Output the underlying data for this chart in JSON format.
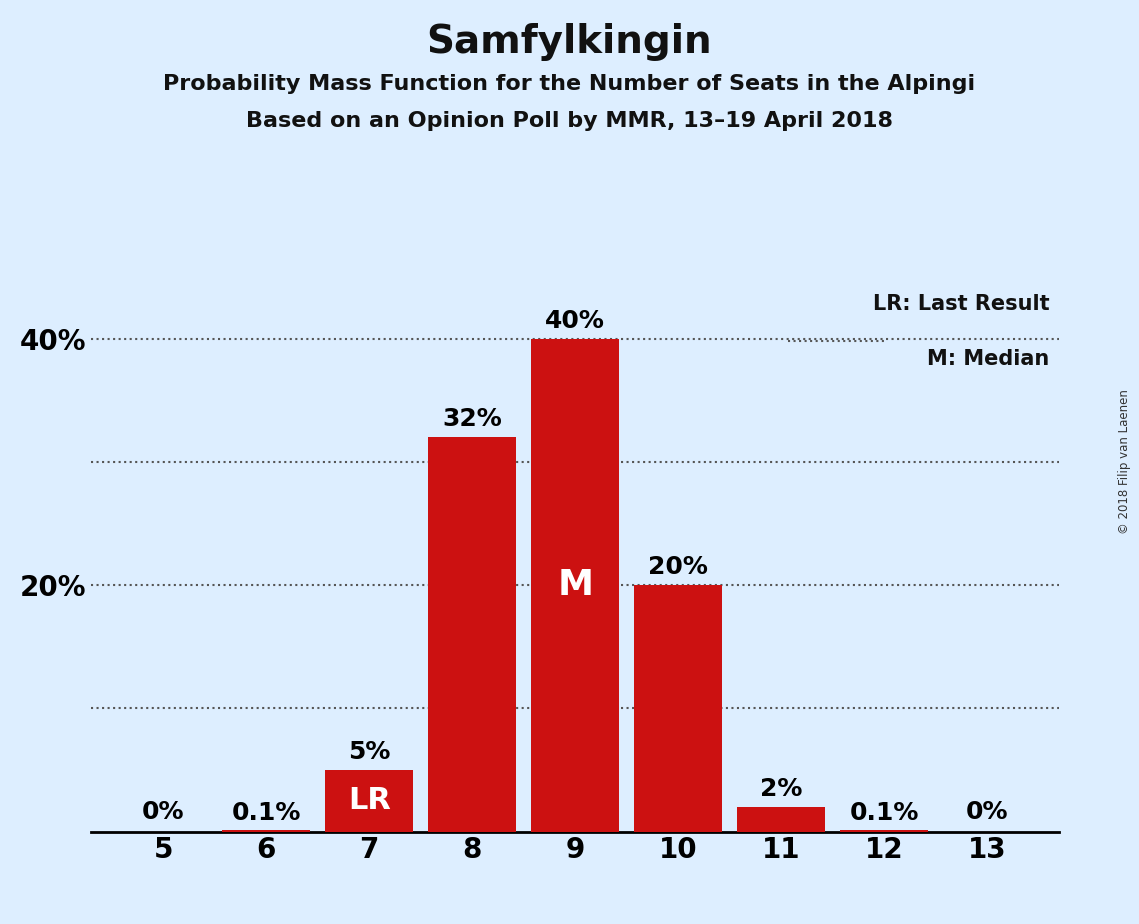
{
  "title": "Samfylkingin",
  "subtitle1": "Probability Mass Function for the Number of Seats in the Alpingi",
  "subtitle2": "Based on an Opinion Poll by MMR, 13–19 April 2018",
  "copyright": "© 2018 Filip van Laenen",
  "background_color": "#ddeeff",
  "bar_color": "#cc1111",
  "seats": [
    5,
    6,
    7,
    8,
    9,
    10,
    11,
    12,
    13
  ],
  "probabilities": [
    0.0,
    0.1,
    5.0,
    32.0,
    40.0,
    20.0,
    2.0,
    0.1,
    0.0
  ],
  "labels": [
    "0%",
    "0.1%",
    "5%",
    "32%",
    "40%",
    "20%",
    "2%",
    "0.1%",
    "0%"
  ],
  "median_seat": 9,
  "lr_seat": 7,
  "ylim": [
    0,
    45
  ],
  "yticks": [
    0,
    10,
    20,
    30,
    40
  ],
  "ytick_labels": [
    "",
    "",
    "20%",
    "",
    "40%"
  ],
  "grid_ticks": [
    10,
    20,
    30,
    40
  ],
  "legend_lr": "LR: Last Result",
  "legend_m": "M: Median",
  "title_fontsize": 28,
  "subtitle_fontsize": 16,
  "tick_fontsize": 20,
  "bar_label_fontsize": 18,
  "inside_label_fontsize": 22
}
